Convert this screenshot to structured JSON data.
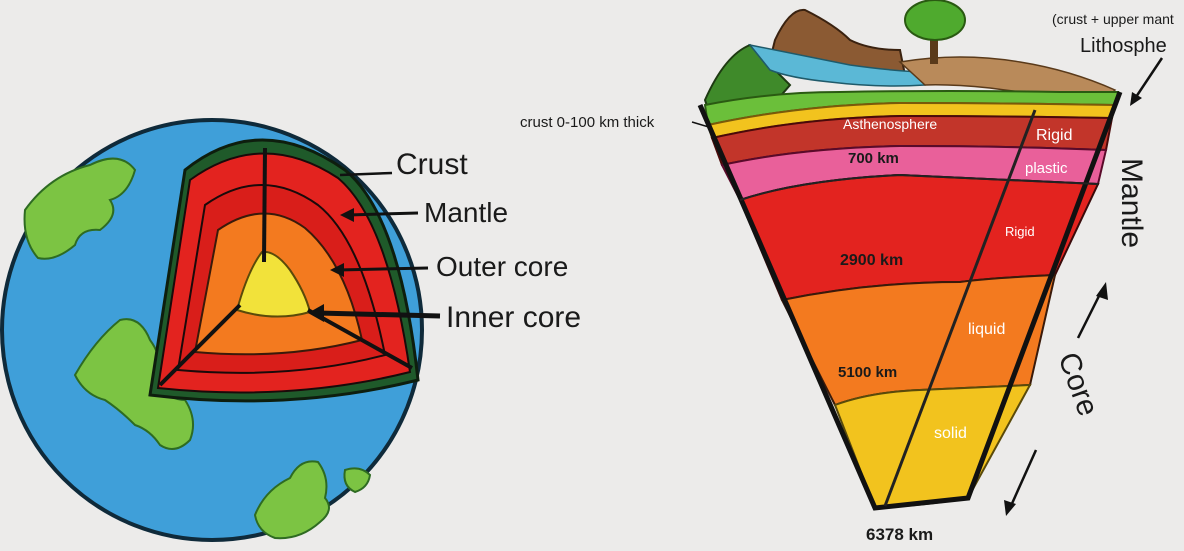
{
  "globe": {
    "labels": {
      "crust": "Crust",
      "mantle": "Mantle",
      "outer_core": "Outer core",
      "inner_core": "Inner core"
    },
    "colors": {
      "ocean": "#3f9fd9",
      "land": "#7cc443",
      "crust": "#1f5a2a",
      "mantle": "#e3231f",
      "outer_core": "#f37a1f",
      "inner_core": "#f2e23a"
    }
  },
  "section": {
    "top_note": "(crust + upper mant",
    "lithosphere": "Lithosphe",
    "crust_note": "crust 0-100 km thick",
    "asthenosphere": "Asthenosphere",
    "rigid_top": "Rigid",
    "depth_700": "700 km",
    "plastic": "plastic",
    "rigid_mid": "Rigid",
    "depth_2900": "2900 km",
    "liquid": "liquid",
    "depth_5100": "5100 km",
    "solid": "solid",
    "depth_6378": "6378 km",
    "mantle_label": "Mantle",
    "core_label": "Core",
    "colors": {
      "asthenosphere": "#c2352a",
      "pink": "#e9609a",
      "red": "#e3231f",
      "orange": "#f37a1f",
      "yellow": "#f2c31e",
      "grass": "#6bbf3a",
      "water": "#5bb8d6",
      "soil": "#8b5a33"
    }
  }
}
